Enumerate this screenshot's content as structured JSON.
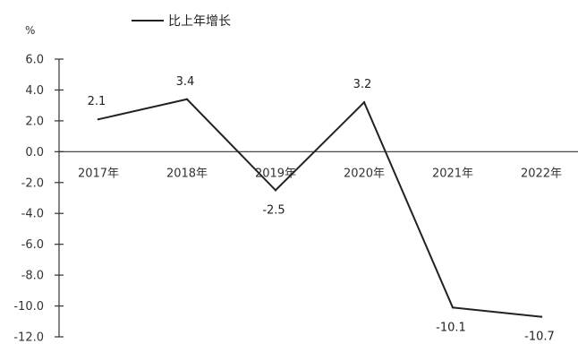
{
  "chart_data": {
    "type": "line",
    "ylabel": "%",
    "categories": [
      "2017年",
      "2018年",
      "2019年",
      "2020年",
      "2021年",
      "2022年"
    ],
    "series": [
      {
        "name": "比上年增长",
        "values": [
          2.1,
          3.4,
          -2.5,
          3.2,
          -10.1,
          -10.7
        ]
      }
    ],
    "data_labels": [
      "2.1",
      "3.4",
      "-2.5",
      "3.2",
      "-10.1",
      "-10.7"
    ],
    "ylim": [
      -12.0,
      6.0
    ],
    "yticks": [
      "6.0",
      "4.0",
      "2.0",
      "0.0",
      "-2.0",
      "-4.0",
      "-6.0",
      "-8.0",
      "-10.0",
      "-12.0"
    ],
    "grid": false,
    "legend": "top-left",
    "line_color": "#222222"
  }
}
